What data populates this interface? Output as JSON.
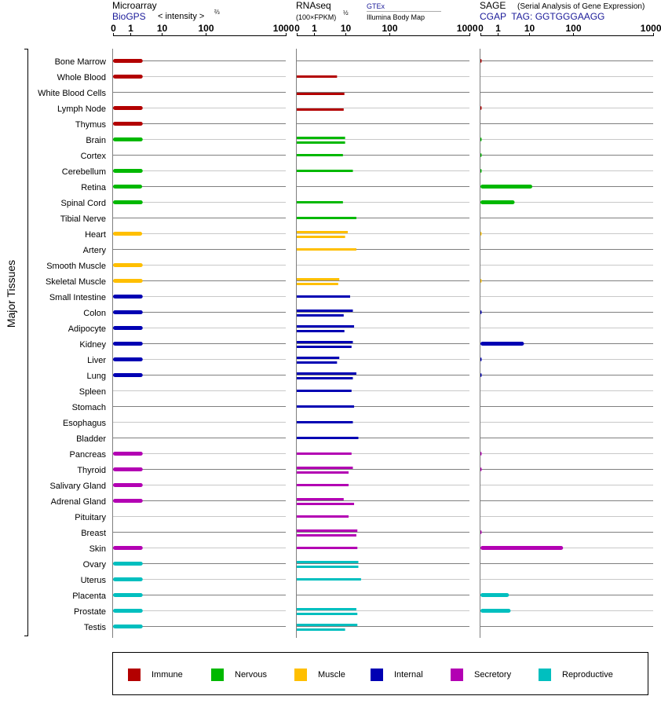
{
  "chart_data": {
    "type": "bar",
    "panels": [
      {
        "title": "Microarray",
        "source": "BioGPS",
        "unit_prefix": "< intensity >",
        "unit_sup": "⅔",
        "scale_ticks": [
          "0",
          "1",
          "10",
          "100",
          "1000"
        ]
      },
      {
        "title": "RNAseq",
        "unit_prefix": "(100×FPKM)",
        "unit_sup": "½",
        "source_top": "GTEx",
        "source_bottom": "Illumina Body Map",
        "scale_ticks": [
          "0",
          "1",
          "10",
          "100",
          "1000"
        ]
      },
      {
        "title": "SAGE",
        "subtitle": "(Serial Analysis of Gene Expression)",
        "tag": "CGAP  TAG: GGTGGGAAGG",
        "scale_ticks": [
          "0",
          "1",
          "10",
          "100",
          "1000"
        ]
      }
    ],
    "ylabel": "Major Tissues",
    "tick_values": [
      0,
      1,
      10,
      100,
      1000
    ],
    "legend": [
      {
        "key": "immune",
        "label": "Immune"
      },
      {
        "key": "nervous",
        "label": "Nervous"
      },
      {
        "key": "muscle",
        "label": "Muscle"
      },
      {
        "key": "internal",
        "label": "Internal"
      },
      {
        "key": "secretory",
        "label": "Secretory"
      },
      {
        "key": "reproductive",
        "label": "Reproductive"
      }
    ],
    "colors": {
      "immune": "#b30000",
      "nervous": "#00b800",
      "muscle": "#ffbf00",
      "internal": "#0000b3",
      "secretory": "#b300b3",
      "reproductive": "#00bfbf"
    },
    "tissues": [
      {
        "name": "Bone Marrow",
        "group": "immune",
        "microarray": 2.5,
        "rnaseq_gtex": null,
        "rnaseq_ibm": null,
        "sage": 0.05
      },
      {
        "name": "Whole Blood",
        "group": "immune",
        "microarray": 2.5,
        "rnaseq_gtex": 5.5,
        "rnaseq_ibm": null,
        "sage": null
      },
      {
        "name": "White Blood Cells",
        "group": "immune",
        "microarray": null,
        "rnaseq_gtex": null,
        "rnaseq_ibm": 9.5,
        "sage": null
      },
      {
        "name": "Lymph Node",
        "group": "immune",
        "microarray": 2.5,
        "rnaseq_gtex": null,
        "rnaseq_ibm": 9.0,
        "sage": 0.05
      },
      {
        "name": "Thymus",
        "group": "immune",
        "microarray": 2.5,
        "rnaseq_gtex": null,
        "rnaseq_ibm": null,
        "sage": null
      },
      {
        "name": "Brain",
        "group": "nervous",
        "microarray": 2.5,
        "rnaseq_gtex": 10.0,
        "rnaseq_ibm": 10.0,
        "sage": 0.03
      },
      {
        "name": "Cortex",
        "group": "nervous",
        "microarray": null,
        "rnaseq_gtex": 8.5,
        "rnaseq_ibm": null,
        "sage": 0.02
      },
      {
        "name": "Cerebellum",
        "group": "nervous",
        "microarray": 2.5,
        "rnaseq_gtex": 15.0,
        "rnaseq_ibm": null,
        "sage": 0.02
      },
      {
        "name": "Retina",
        "group": "nervous",
        "microarray": 2.4,
        "rnaseq_gtex": null,
        "rnaseq_ibm": null,
        "sage": 12.0
      },
      {
        "name": "Spinal Cord",
        "group": "nervous",
        "microarray": 2.5,
        "rnaseq_gtex": 8.5,
        "rnaseq_ibm": null,
        "sage": 3.5
      },
      {
        "name": "Tibial Nerve",
        "group": "nervous",
        "microarray": null,
        "rnaseq_gtex": 18.0,
        "rnaseq_ibm": null,
        "sage": null
      },
      {
        "name": "Heart",
        "group": "muscle",
        "microarray": 2.4,
        "rnaseq_gtex": 11.5,
        "rnaseq_ibm": 10.0,
        "sage": 0.01
      },
      {
        "name": "Artery",
        "group": "muscle",
        "microarray": null,
        "rnaseq_gtex": 18.0,
        "rnaseq_ibm": null,
        "sage": null
      },
      {
        "name": "Smooth Muscle",
        "group": "muscle",
        "microarray": 2.5,
        "rnaseq_gtex": null,
        "rnaseq_ibm": null,
        "sage": null
      },
      {
        "name": "Skeletal Muscle",
        "group": "muscle",
        "microarray": 2.5,
        "rnaseq_gtex": 6.5,
        "rnaseq_ibm": 6.0,
        "sage": 0.01
      },
      {
        "name": "Small Intestine",
        "group": "internal",
        "microarray": 2.5,
        "rnaseq_gtex": 13.0,
        "rnaseq_ibm": null,
        "sage": null
      },
      {
        "name": "Colon",
        "group": "internal",
        "microarray": 2.5,
        "rnaseq_gtex": 15.0,
        "rnaseq_ibm": 9.0,
        "sage": 0.05
      },
      {
        "name": "Adipocyte",
        "group": "internal",
        "microarray": 2.5,
        "rnaseq_gtex": 16.0,
        "rnaseq_ibm": 9.5,
        "sage": null
      },
      {
        "name": "Kidney",
        "group": "internal",
        "microarray": 2.5,
        "rnaseq_gtex": 15.0,
        "rnaseq_ibm": 14.0,
        "sage": 7.0
      },
      {
        "name": "Liver",
        "group": "internal",
        "microarray": 2.5,
        "rnaseq_gtex": 6.5,
        "rnaseq_ibm": 5.5,
        "sage": 0.05
      },
      {
        "name": "Lung",
        "group": "internal",
        "microarray": 2.5,
        "rnaseq_gtex": 18.0,
        "rnaseq_ibm": 15.0,
        "sage": 0.05
      },
      {
        "name": "Spleen",
        "group": "internal",
        "microarray": null,
        "rnaseq_gtex": 14.0,
        "rnaseq_ibm": null,
        "sage": null
      },
      {
        "name": "Stomach",
        "group": "internal",
        "microarray": null,
        "rnaseq_gtex": 16.0,
        "rnaseq_ibm": null,
        "sage": null
      },
      {
        "name": "Esophagus",
        "group": "internal",
        "microarray": null,
        "rnaseq_gtex": 15.0,
        "rnaseq_ibm": null,
        "sage": null
      },
      {
        "name": "Bladder",
        "group": "internal",
        "microarray": null,
        "rnaseq_gtex": 20.0,
        "rnaseq_ibm": null,
        "sage": null
      },
      {
        "name": "Pancreas",
        "group": "secretory",
        "microarray": 2.5,
        "rnaseq_gtex": 14.0,
        "rnaseq_ibm": null,
        "sage": 0.05
      },
      {
        "name": "Thyroid",
        "group": "secretory",
        "microarray": 2.5,
        "rnaseq_gtex": 15.0,
        "rnaseq_ibm": 12.0,
        "sage": 0.05
      },
      {
        "name": "Salivary Gland",
        "group": "secretory",
        "microarray": 2.5,
        "rnaseq_gtex": 12.0,
        "rnaseq_ibm": null,
        "sage": null
      },
      {
        "name": "Adrenal Gland",
        "group": "secretory",
        "microarray": 2.5,
        "rnaseq_gtex": 9.0,
        "rnaseq_ibm": 16.0,
        "sage": null
      },
      {
        "name": "Pituitary",
        "group": "secretory",
        "microarray": null,
        "rnaseq_gtex": 12.0,
        "rnaseq_ibm": null,
        "sage": null
      },
      {
        "name": "Breast",
        "group": "secretory",
        "microarray": null,
        "rnaseq_gtex": 19.0,
        "rnaseq_ibm": 18.0,
        "sage": 0.05
      },
      {
        "name": "Skin",
        "group": "secretory",
        "microarray": 2.5,
        "rnaseq_gtex": 19.0,
        "rnaseq_ibm": null,
        "sage": 60.0
      },
      {
        "name": "Ovary",
        "group": "reproductive",
        "microarray": 2.5,
        "rnaseq_gtex": 20.0,
        "rnaseq_ibm": 20.0,
        "sage": null
      },
      {
        "name": "Uterus",
        "group": "reproductive",
        "microarray": 2.5,
        "rnaseq_gtex": 23.0,
        "rnaseq_ibm": null,
        "sage": null
      },
      {
        "name": "Placenta",
        "group": "reproductive",
        "microarray": 2.5,
        "rnaseq_gtex": null,
        "rnaseq_ibm": null,
        "sage": 2.3
      },
      {
        "name": "Prostate",
        "group": "reproductive",
        "microarray": 2.5,
        "rnaseq_gtex": 18.0,
        "rnaseq_ibm": 19.0,
        "sage": 2.6
      },
      {
        "name": "Testis",
        "group": "reproductive",
        "microarray": 2.5,
        "rnaseq_gtex": 19.0,
        "rnaseq_ibm": 10.0,
        "sage": null
      }
    ]
  }
}
